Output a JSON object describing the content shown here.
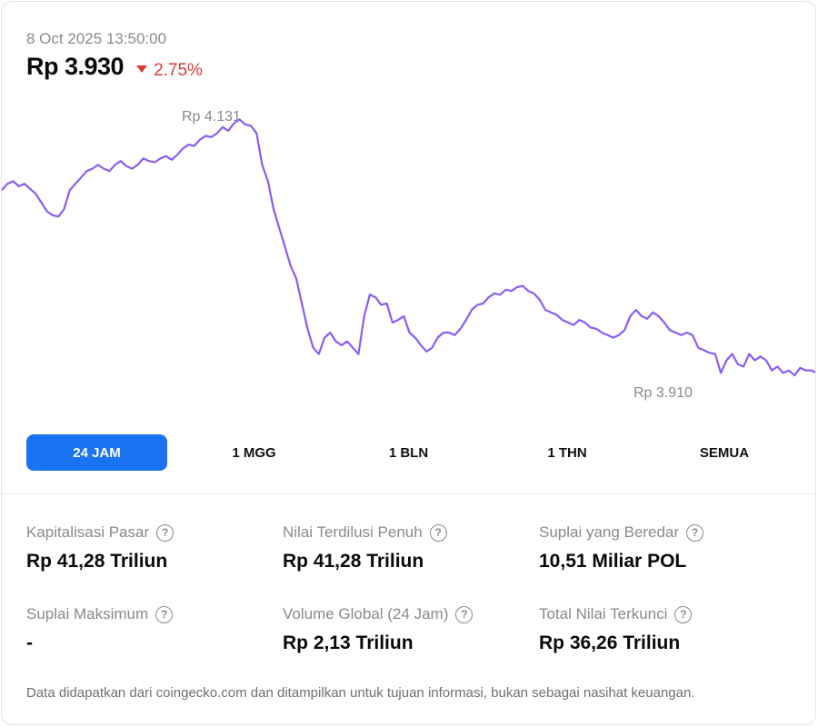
{
  "header": {
    "timestamp": "8 Oct 2025 13:50:00",
    "price": "Rp 3.930",
    "change": "2.75%",
    "change_direction": "down",
    "change_color": "#d93b3b"
  },
  "chart": {
    "high_label": "Rp 4.131",
    "low_label": "Rp 3.910",
    "line_color": "#8b5cf6"
  },
  "tabs": [
    {
      "label": "24 JAM",
      "active": true
    },
    {
      "label": "1 MGG",
      "active": false
    },
    {
      "label": "1 BLN",
      "active": false
    },
    {
      "label": "1 THN",
      "active": false
    },
    {
      "label": "SEMUA",
      "active": false
    }
  ],
  "stats": [
    {
      "label": "Kapitalisasi Pasar",
      "value": "Rp 41,28 Triliun"
    },
    {
      "label": "Nilai Terdilusi Penuh",
      "value": "Rp 41,28 Triliun"
    },
    {
      "label": "Suplai yang Beredar",
      "value": "10,51 Miliar POL"
    },
    {
      "label": "Suplai Maksimum",
      "value": "-"
    },
    {
      "label": "Volume Global (24 Jam)",
      "value": "Rp 2,13 Triliun"
    },
    {
      "label": "Total Nilai Terkunci",
      "value": "Rp 36,26 Triliun"
    }
  ],
  "info_icon_glyph": "?",
  "footnote": "Data didapatkan dari coingecko.com dan ditampilkan untuk tujuan informasi, bukan sebagai nasihat keuangan.",
  "accent_color": "#1a73f0",
  "chart_data": {
    "type": "line",
    "series": [
      {
        "values": [
          4075,
          4080,
          4082,
          4078,
          4080,
          4076,
          4072,
          4065,
          4058,
          4055,
          4054,
          4060,
          4075,
          4080,
          4085,
          4090,
          4092,
          4095,
          4092,
          4090,
          4095,
          4098,
          4094,
          4092,
          4095,
          4100,
          4098,
          4097,
          4100,
          4102,
          4099,
          4103,
          4108,
          4111,
          4110,
          4115,
          4118,
          4117,
          4120,
          4125,
          4122,
          4128,
          4131,
          4127,
          4126,
          4120,
          4095,
          4082,
          4060,
          4045,
          4030,
          4015,
          4005,
          3985,
          3965,
          3950,
          3945,
          3958,
          3962,
          3955,
          3952,
          3955,
          3950,
          3945,
          3975,
          3992,
          3990,
          3984,
          3985,
          3970,
          3972,
          3975,
          3962,
          3958,
          3952,
          3947,
          3950,
          3958,
          3962,
          3962,
          3960,
          3965,
          3972,
          3980,
          3984,
          3985,
          3990,
          3993,
          3992,
          3996,
          3995,
          3998,
          3999,
          3995,
          3993,
          3988,
          3980,
          3978,
          3976,
          3972,
          3970,
          3968,
          3972,
          3970,
          3966,
          3965,
          3962,
          3960,
          3958,
          3960,
          3964,
          3975,
          3980,
          3975,
          3973,
          3978,
          3975,
          3970,
          3964,
          3962,
          3960,
          3962,
          3960,
          3950,
          3948,
          3946,
          3945,
          3930,
          3940,
          3945,
          3937,
          3935,
          3945,
          3940,
          3943,
          3940,
          3932,
          3935,
          3930,
          3932,
          3928,
          3934,
          3932,
          3932,
          3930
        ]
      }
    ],
    "ylim": [
      3900,
      4145
    ],
    "high": 4131,
    "low": 3910,
    "grid": false,
    "legend": "none"
  }
}
